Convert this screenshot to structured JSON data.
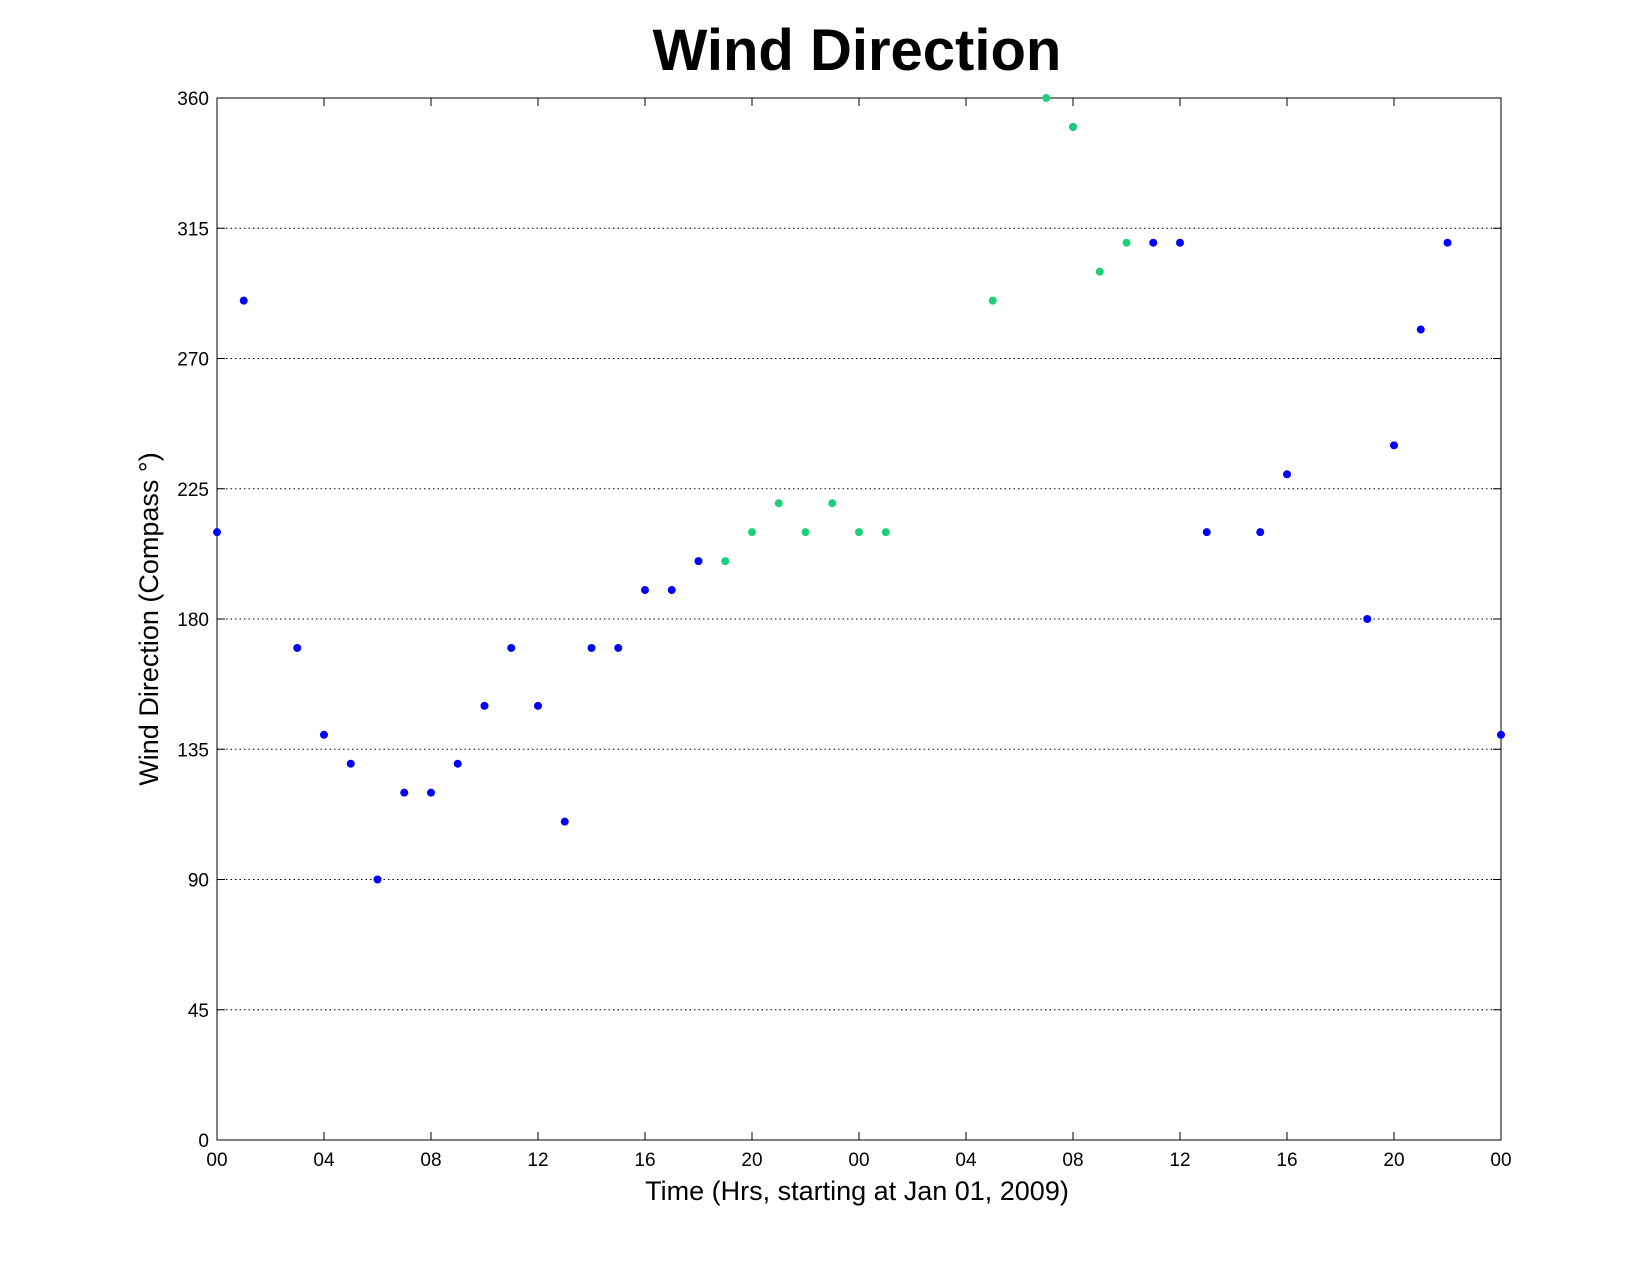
{
  "chart_data": {
    "type": "scatter",
    "title": "Wind Direction",
    "x_label": "Time (Hrs, starting at Jan 01, 2009)",
    "y_label": "Wind Direction (Compass °)",
    "xlim": [
      0,
      48
    ],
    "xticks": [
      {
        "value": 0,
        "label": "00"
      },
      {
        "value": 4,
        "label": "04"
      },
      {
        "value": 8,
        "label": "08"
      },
      12,
      16,
      20,
      {
        "value": 24,
        "label": "00"
      },
      {
        "value": 28,
        "label": "04"
      },
      {
        "value": 32,
        "label": "08"
      },
      {
        "value": 36,
        "label": "12"
      },
      {
        "value": 40,
        "label": "16"
      },
      {
        "value": 44,
        "label": "20"
      },
      {
        "value": 48,
        "label": "00"
      }
    ],
    "ylim": [
      0,
      360
    ],
    "yticks": [
      0,
      45,
      90,
      135,
      180,
      225,
      270,
      315,
      360
    ],
    "grid": true,
    "series": [
      {
        "color": "#0000ff",
        "x": [
          0,
          1,
          3,
          4,
          5,
          6,
          7,
          8,
          9,
          10,
          11,
          12,
          13,
          14,
          15,
          16,
          17,
          18,
          32,
          35,
          36,
          37,
          39,
          40,
          43,
          44,
          45,
          46,
          48
        ],
        "values": [
          210,
          290,
          170,
          140,
          130,
          90,
          120,
          120,
          130,
          150,
          170,
          150,
          110,
          170,
          170,
          190,
          190,
          200,
          350,
          310,
          310,
          210,
          210,
          230,
          180,
          240,
          280,
          310,
          140
        ]
      },
      {
        "color": "#1ccf78",
        "x": [
          19,
          20,
          21,
          22,
          23,
          24,
          25,
          29,
          31,
          32,
          33,
          34
        ],
        "values": [
          200,
          210,
          220,
          210,
          220,
          210,
          210,
          290,
          360,
          350,
          300,
          310
        ]
      }
    ]
  }
}
